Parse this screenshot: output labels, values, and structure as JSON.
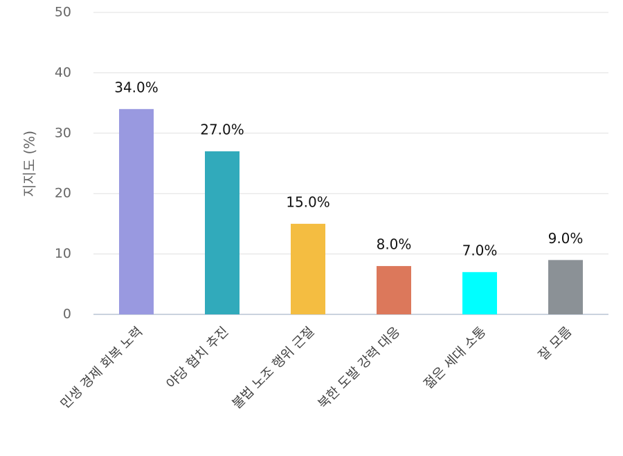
{
  "chart_data": {
    "type": "bar",
    "y_label": "지지도 (%)",
    "categories": [
      "민생 경제 회복 노력",
      "야당 협치 추진",
      "불법 노조 행위 근절",
      "북한 도발 강력 대응",
      "젊은 세대 소통",
      "잘 모름"
    ],
    "values": [
      34,
      27,
      15,
      8,
      7,
      9
    ],
    "value_labels": [
      "34.0%",
      "27.0%",
      "15.0%",
      "8.0%",
      "7.0%",
      "9.0%"
    ],
    "colors": [
      "#9999e0",
      "#31aabb",
      "#f4bd41",
      "#dc785b",
      "#00ffff",
      "#8b9196"
    ],
    "ylim": [
      0,
      50
    ],
    "yticks": [
      0,
      10,
      20,
      30,
      40,
      50
    ],
    "grid": true
  }
}
